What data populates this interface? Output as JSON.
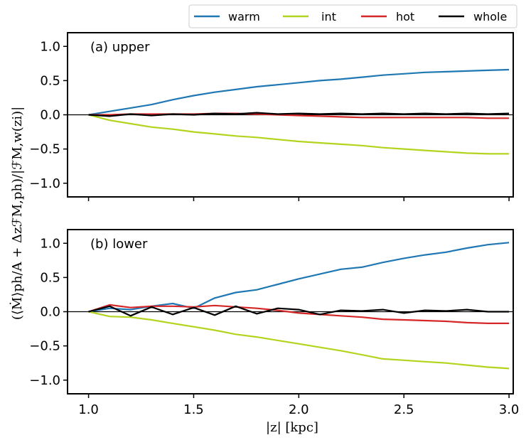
{
  "chart_data": {
    "type": "line",
    "legend": {
      "placement": "top-right, above plots",
      "entries": [
        {
          "label": "warm",
          "color": "#1f77b4"
        },
        {
          "label": "int",
          "color": "#b2d41c"
        },
        {
          "label": "hot",
          "color": "#d62728"
        },
        {
          "label": "whole",
          "color": "#000000"
        }
      ]
    },
    "xlabel": "|z| [kpc]",
    "ylabel": "(⟨Ṁ⟩ph/A + ΔzℱM,ph)/|ℱM,w(zi)|",
    "xlim": [
      0.9,
      3.02
    ],
    "ylim": [
      -1.2,
      1.2
    ],
    "xticks": [
      1.0,
      1.5,
      2.0,
      2.5,
      3.0
    ],
    "xtick_labels": [
      "1.0",
      "1.5",
      "2.0",
      "2.5",
      "3.0"
    ],
    "yticks": [
      1.0,
      0.5,
      0.0,
      -0.5,
      -1.0
    ],
    "ytick_labels": [
      "1.0",
      "0.5",
      "0.0",
      "−0.5",
      "−1.0"
    ],
    "panels": [
      {
        "label": "(a) upper",
        "x": [
          1.0,
          1.1,
          1.2,
          1.3,
          1.4,
          1.5,
          1.6,
          1.7,
          1.8,
          1.9,
          2.0,
          2.1,
          2.2,
          2.3,
          2.4,
          2.5,
          2.6,
          2.7,
          2.8,
          2.9,
          3.0
        ],
        "series": [
          {
            "name": "warm",
            "color": "#1f77b4",
            "values": [
              0.0,
              0.05,
              0.1,
              0.15,
              0.22,
              0.28,
              0.33,
              0.37,
              0.41,
              0.44,
              0.47,
              0.5,
              0.52,
              0.55,
              0.58,
              0.6,
              0.62,
              0.63,
              0.64,
              0.65,
              0.66
            ]
          },
          {
            "name": "int",
            "color": "#b2d41c",
            "values": [
              0.0,
              -0.08,
              -0.13,
              -0.18,
              -0.21,
              -0.25,
              -0.28,
              -0.31,
              -0.33,
              -0.36,
              -0.39,
              -0.41,
              -0.43,
              -0.45,
              -0.48,
              -0.5,
              -0.52,
              -0.54,
              -0.56,
              -0.57,
              -0.57
            ]
          },
          {
            "name": "hot",
            "color": "#d62728",
            "values": [
              0.0,
              0.0,
              0.01,
              0.01,
              0.01,
              0.01,
              0.02,
              0.02,
              0.01,
              0.0,
              -0.01,
              -0.02,
              -0.03,
              -0.04,
              -0.04,
              -0.04,
              -0.04,
              -0.04,
              -0.04,
              -0.05,
              -0.05
            ]
          },
          {
            "name": "whole",
            "color": "#000000",
            "values": [
              0.0,
              -0.02,
              0.01,
              -0.01,
              0.01,
              0.0,
              0.02,
              0.01,
              0.03,
              0.01,
              0.02,
              0.01,
              0.02,
              0.01,
              0.02,
              0.01,
              0.02,
              0.01,
              0.02,
              0.01,
              0.02
            ]
          }
        ]
      },
      {
        "label": "(b) lower",
        "x": [
          1.0,
          1.1,
          1.2,
          1.3,
          1.4,
          1.5,
          1.6,
          1.7,
          1.8,
          1.9,
          2.0,
          2.1,
          2.2,
          2.3,
          2.4,
          2.5,
          2.6,
          2.7,
          2.8,
          2.9,
          3.0
        ],
        "series": [
          {
            "name": "warm",
            "color": "#1f77b4",
            "values": [
              0.0,
              0.05,
              0.03,
              0.08,
              0.12,
              0.05,
              0.2,
              0.28,
              0.32,
              0.4,
              0.48,
              0.55,
              0.62,
              0.65,
              0.72,
              0.78,
              0.83,
              0.87,
              0.93,
              0.98,
              1.01
            ]
          },
          {
            "name": "int",
            "color": "#b2d41c",
            "values": [
              0.0,
              -0.07,
              -0.08,
              -0.12,
              -0.17,
              -0.22,
              -0.27,
              -0.33,
              -0.37,
              -0.42,
              -0.47,
              -0.52,
              -0.57,
              -0.63,
              -0.69,
              -0.71,
              -0.73,
              -0.75,
              -0.78,
              -0.81,
              -0.83
            ]
          },
          {
            "name": "hot",
            "color": "#d62728",
            "values": [
              0.0,
              0.1,
              0.06,
              0.08,
              0.08,
              0.07,
              0.09,
              0.07,
              0.05,
              0.02,
              -0.02,
              -0.04,
              -0.06,
              -0.08,
              -0.11,
              -0.12,
              -0.13,
              -0.14,
              -0.16,
              -0.17,
              -0.17
            ]
          },
          {
            "name": "whole",
            "color": "#000000",
            "values": [
              0.0,
              0.08,
              -0.06,
              0.07,
              -0.04,
              0.06,
              -0.05,
              0.08,
              -0.03,
              0.05,
              0.03,
              -0.04,
              0.02,
              0.01,
              0.03,
              -0.02,
              0.02,
              0.01,
              0.03,
              0.0,
              0.0
            ]
          }
        ]
      }
    ]
  }
}
